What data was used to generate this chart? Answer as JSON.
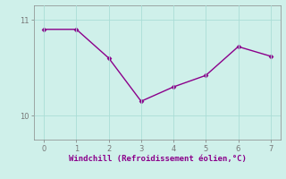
{
  "x": [
    0,
    1,
    2,
    3,
    4,
    5,
    6,
    7
  ],
  "y": [
    10.9,
    10.9,
    10.6,
    10.15,
    10.3,
    10.42,
    10.72,
    10.62
  ],
  "line_color": "#8B008B",
  "marker": "D",
  "marker_size": 2.5,
  "xlabel": "Windchill (Refroidissement éolien,°C)",
  "xlabel_color": "#8B008B",
  "background_color": "#cff0ea",
  "grid_color": "#aaddd6",
  "tick_color": "#777777",
  "spine_color": "#888888",
  "ylim": [
    9.75,
    11.15
  ],
  "xlim": [
    -0.3,
    7.3
  ],
  "yticks": [
    10,
    11
  ],
  "xticks": [
    0,
    1,
    2,
    3,
    4,
    5,
    6,
    7
  ],
  "figsize": [
    3.2,
    2.0
  ],
  "dpi": 100
}
